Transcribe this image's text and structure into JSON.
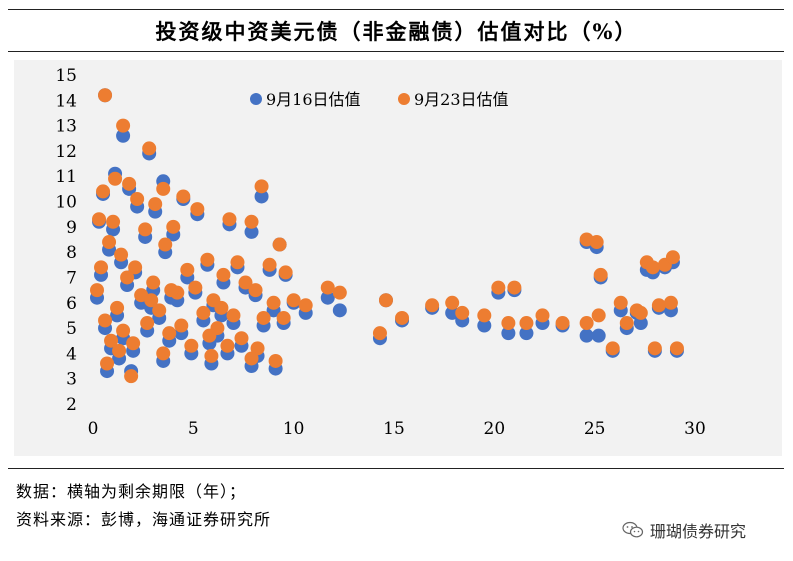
{
  "title": "投资级中资美元债（非金融债）估值对比（%）",
  "notes": {
    "data": "数据：横轴为剩余期限（年）；",
    "source": "资料来源：彭博，海通证券研究所"
  },
  "watermark": "珊瑚债券研究",
  "colors": {
    "series1": "#4472c4",
    "series2": "#ed7d31",
    "panel": "#f2f2f2"
  },
  "chart_data": {
    "type": "scatter",
    "title": "投资级中资美元债（非金融债）估值对比（%）",
    "xlabel": "",
    "ylabel": "",
    "xlim": [
      0,
      30
    ],
    "ylim": [
      2,
      15
    ],
    "xticks": [
      "0",
      "5",
      "10",
      "15",
      "20",
      "25",
      "30"
    ],
    "yticks": [
      "2",
      "3",
      "4",
      "5",
      "6",
      "7",
      "8",
      "9",
      "10",
      "11",
      "12",
      "13",
      "14",
      "15"
    ],
    "legend": "top-left",
    "grid": false,
    "series": [
      {
        "name": "9月16日估值",
        "color": "#4472c4",
        "points": [
          [
            0.6,
            14.2
          ],
          [
            1.5,
            12.6
          ],
          [
            2.8,
            11.9
          ],
          [
            1.1,
            11.1
          ],
          [
            3.5,
            10.8
          ],
          [
            0.5,
            10.3
          ],
          [
            1.8,
            10.5
          ],
          [
            4.5,
            10.1
          ],
          [
            8.4,
            10.2
          ],
          [
            2.2,
            9.8
          ],
          [
            3.1,
            9.6
          ],
          [
            0.3,
            9.2
          ],
          [
            5.2,
            9.5
          ],
          [
            6.8,
            9.1
          ],
          [
            7.9,
            8.8
          ],
          [
            1.0,
            8.9
          ],
          [
            2.6,
            8.6
          ],
          [
            4.0,
            8.7
          ],
          [
            9.3,
            8.3
          ],
          [
            0.8,
            8.1
          ],
          [
            3.6,
            8.0
          ],
          [
            1.4,
            7.6
          ],
          [
            5.7,
            7.5
          ],
          [
            7.2,
            7.4
          ],
          [
            8.8,
            7.3
          ],
          [
            0.4,
            7.1
          ],
          [
            2.1,
            7.2
          ],
          [
            4.7,
            7.0
          ],
          [
            6.5,
            6.8
          ],
          [
            9.6,
            7.1
          ],
          [
            1.7,
            6.7
          ],
          [
            3.0,
            6.5
          ],
          [
            5.1,
            6.4
          ],
          [
            7.6,
            6.6
          ],
          [
            8.1,
            6.3
          ],
          [
            0.2,
            6.2
          ],
          [
            2.4,
            6.0
          ],
          [
            4.2,
            6.1
          ],
          [
            6.0,
            5.9
          ],
          [
            9.0,
            5.7
          ],
          [
            10.6,
            5.6
          ],
          [
            1.2,
            5.5
          ],
          [
            3.3,
            5.4
          ],
          [
            5.5,
            5.3
          ],
          [
            7.0,
            5.2
          ],
          [
            8.5,
            5.1
          ],
          [
            0.6,
            5.0
          ],
          [
            2.7,
            4.9
          ],
          [
            4.4,
            4.8
          ],
          [
            6.2,
            4.7
          ],
          [
            9.5,
            5.2
          ],
          [
            1.5,
            4.6
          ],
          [
            3.8,
            4.5
          ],
          [
            5.8,
            4.4
          ],
          [
            7.4,
            4.3
          ],
          [
            0.9,
            4.2
          ],
          [
            2.0,
            4.1
          ],
          [
            4.9,
            4.0
          ],
          [
            6.7,
            4.0
          ],
          [
            8.2,
            3.9
          ],
          [
            1.3,
            3.8
          ],
          [
            3.5,
            3.7
          ],
          [
            5.9,
            3.6
          ],
          [
            7.9,
            3.5
          ],
          [
            9.1,
            3.4
          ],
          [
            0.7,
            3.3
          ],
          [
            1.9,
            3.3
          ],
          [
            2.9,
            5.8
          ],
          [
            3.9,
            6.2
          ],
          [
            6.4,
            5.5
          ],
          [
            12.3,
            5.7
          ],
          [
            11.7,
            6.2
          ],
          [
            10.0,
            6.0
          ],
          [
            14.3,
            4.6
          ],
          [
            14.6,
            6.1
          ],
          [
            15.4,
            5.3
          ],
          [
            16.9,
            5.8
          ],
          [
            17.9,
            5.6
          ],
          [
            18.4,
            5.3
          ],
          [
            19.5,
            5.1
          ],
          [
            20.2,
            6.4
          ],
          [
            20.7,
            4.8
          ],
          [
            21.0,
            6.5
          ],
          [
            21.6,
            4.8
          ],
          [
            22.4,
            5.2
          ],
          [
            23.4,
            5.1
          ],
          [
            24.6,
            4.7
          ],
          [
            24.6,
            8.4
          ],
          [
            25.1,
            8.2
          ],
          [
            25.3,
            7.0
          ],
          [
            25.2,
            4.7
          ],
          [
            25.9,
            4.1
          ],
          [
            26.3,
            5.7
          ],
          [
            26.6,
            5.0
          ],
          [
            27.1,
            5.6
          ],
          [
            27.3,
            5.2
          ],
          [
            27.6,
            7.3
          ],
          [
            27.9,
            7.2
          ],
          [
            28.2,
            5.8
          ],
          [
            28.0,
            4.1
          ],
          [
            28.5,
            7.4
          ],
          [
            28.8,
            5.7
          ],
          [
            28.9,
            7.6
          ],
          [
            29.1,
            4.1
          ]
        ]
      },
      {
        "name": "9月23日估值",
        "color": "#ed7d31",
        "points": [
          [
            0.6,
            14.2
          ],
          [
            1.5,
            13.0
          ],
          [
            2.8,
            12.1
          ],
          [
            1.1,
            10.9
          ],
          [
            3.5,
            10.5
          ],
          [
            0.5,
            10.4
          ],
          [
            1.8,
            10.7
          ],
          [
            4.5,
            10.2
          ],
          [
            8.4,
            10.6
          ],
          [
            2.2,
            10.1
          ],
          [
            3.1,
            9.9
          ],
          [
            0.3,
            9.3
          ],
          [
            5.2,
            9.7
          ],
          [
            6.8,
            9.3
          ],
          [
            7.9,
            9.2
          ],
          [
            1.0,
            9.2
          ],
          [
            2.6,
            8.9
          ],
          [
            4.0,
            9.0
          ],
          [
            9.3,
            8.3
          ],
          [
            0.8,
            8.4
          ],
          [
            3.6,
            8.3
          ],
          [
            1.4,
            7.9
          ],
          [
            5.7,
            7.7
          ],
          [
            7.2,
            7.6
          ],
          [
            8.8,
            7.5
          ],
          [
            0.4,
            7.4
          ],
          [
            2.1,
            7.4
          ],
          [
            4.7,
            7.3
          ],
          [
            6.5,
            7.1
          ],
          [
            9.6,
            7.2
          ],
          [
            1.7,
            7.0
          ],
          [
            3.0,
            6.8
          ],
          [
            5.1,
            6.6
          ],
          [
            7.6,
            6.8
          ],
          [
            8.1,
            6.5
          ],
          [
            0.2,
            6.5
          ],
          [
            2.4,
            6.3
          ],
          [
            4.2,
            6.4
          ],
          [
            6.0,
            6.1
          ],
          [
            9.0,
            6.0
          ],
          [
            10.6,
            5.9
          ],
          [
            1.2,
            5.8
          ],
          [
            3.3,
            5.7
          ],
          [
            5.5,
            5.6
          ],
          [
            7.0,
            5.5
          ],
          [
            8.5,
            5.4
          ],
          [
            0.6,
            5.3
          ],
          [
            2.7,
            5.2
          ],
          [
            4.4,
            5.1
          ],
          [
            6.2,
            5.0
          ],
          [
            9.5,
            5.4
          ],
          [
            1.5,
            4.9
          ],
          [
            3.8,
            4.8
          ],
          [
            5.8,
            4.7
          ],
          [
            7.4,
            4.6
          ],
          [
            0.9,
            4.5
          ],
          [
            2.0,
            4.4
          ],
          [
            4.9,
            4.3
          ],
          [
            6.7,
            4.3
          ],
          [
            8.2,
            4.2
          ],
          [
            1.3,
            4.1
          ],
          [
            3.5,
            4.0
          ],
          [
            5.9,
            3.9
          ],
          [
            7.9,
            3.8
          ],
          [
            9.1,
            3.7
          ],
          [
            0.7,
            3.6
          ],
          [
            1.9,
            3.1
          ],
          [
            2.9,
            6.1
          ],
          [
            3.9,
            6.5
          ],
          [
            6.4,
            5.8
          ],
          [
            12.3,
            6.4
          ],
          [
            11.7,
            6.6
          ],
          [
            10.0,
            6.1
          ],
          [
            14.3,
            4.8
          ],
          [
            14.6,
            6.1
          ],
          [
            15.4,
            5.4
          ],
          [
            16.9,
            5.9
          ],
          [
            17.9,
            6.0
          ],
          [
            18.4,
            5.6
          ],
          [
            19.5,
            5.5
          ],
          [
            20.2,
            6.6
          ],
          [
            20.7,
            5.2
          ],
          [
            21.0,
            6.6
          ],
          [
            21.6,
            5.2
          ],
          [
            22.4,
            5.5
          ],
          [
            23.4,
            5.2
          ],
          [
            24.6,
            5.2
          ],
          [
            24.6,
            8.5
          ],
          [
            25.1,
            8.4
          ],
          [
            25.3,
            7.1
          ],
          [
            25.2,
            5.5
          ],
          [
            25.9,
            4.2
          ],
          [
            26.3,
            6.0
          ],
          [
            26.6,
            5.2
          ],
          [
            27.1,
            5.7
          ],
          [
            27.3,
            5.6
          ],
          [
            27.6,
            7.6
          ],
          [
            27.9,
            7.4
          ],
          [
            28.2,
            5.9
          ],
          [
            28.0,
            4.2
          ],
          [
            28.5,
            7.5
          ],
          [
            28.8,
            6.0
          ],
          [
            28.9,
            7.8
          ],
          [
            29.1,
            4.2
          ]
        ]
      }
    ]
  }
}
